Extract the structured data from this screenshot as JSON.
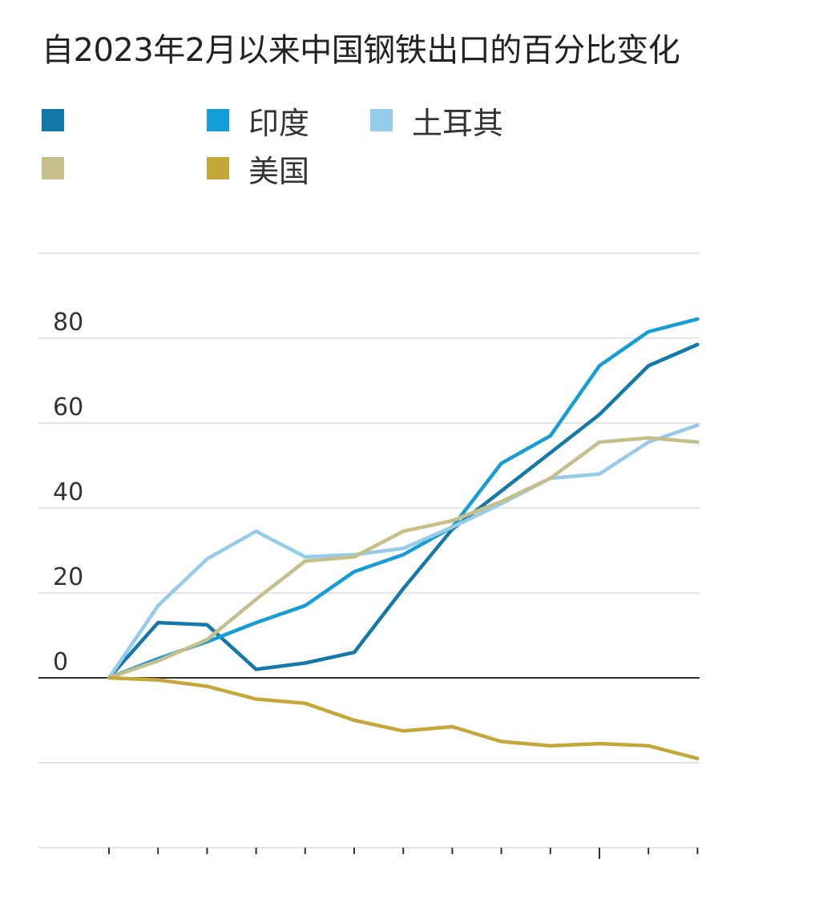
{
  "chart_data": {
    "type": "line",
    "title": "自2023年2月以来中国钢铁出口的百分比变化",
    "xlabel": "",
    "ylabel": "",
    "x": [
      0,
      1,
      2,
      3,
      4,
      5,
      6,
      7,
      8,
      9,
      10,
      11,
      12
    ],
    "y_ticks": [
      0,
      20,
      40,
      60,
      80
    ],
    "ylim": [
      -40,
      100
    ],
    "grid": true,
    "legend_position": "top-left",
    "series": [
      {
        "name": "",
        "color": "#1479a8",
        "blurred_label": true,
        "values": [
          0,
          13,
          12.5,
          2,
          3.5,
          6,
          21,
          35,
          44,
          53,
          62,
          73.5,
          78.5
        ]
      },
      {
        "name": "印度",
        "color": "#159dd6",
        "blurred_label": false,
        "values": [
          0,
          4.5,
          8.5,
          13,
          17,
          25,
          29,
          35.5,
          50.5,
          57,
          73.5,
          81.5,
          84.5
        ]
      },
      {
        "name": "土耳其",
        "color": "#96cbeb",
        "blurred_label": false,
        "values": [
          0,
          17,
          28,
          34.5,
          28.5,
          29,
          30.5,
          35.5,
          41,
          47,
          48,
          55.5,
          59.5
        ]
      },
      {
        "name": "",
        "color": "#c6bf89",
        "blurred_label": true,
        "values": [
          0,
          4,
          9,
          18.5,
          27.5,
          28.5,
          34.5,
          37,
          41.5,
          47,
          55.5,
          56.5,
          55.5
        ]
      },
      {
        "name": "美国",
        "color": "#c5a83a",
        "blurred_label": false,
        "values": [
          0,
          -0.5,
          -2,
          -5,
          -6,
          -10,
          -12.5,
          -11.5,
          -15,
          -16,
          -15.5,
          -16,
          -19
        ]
      }
    ]
  }
}
